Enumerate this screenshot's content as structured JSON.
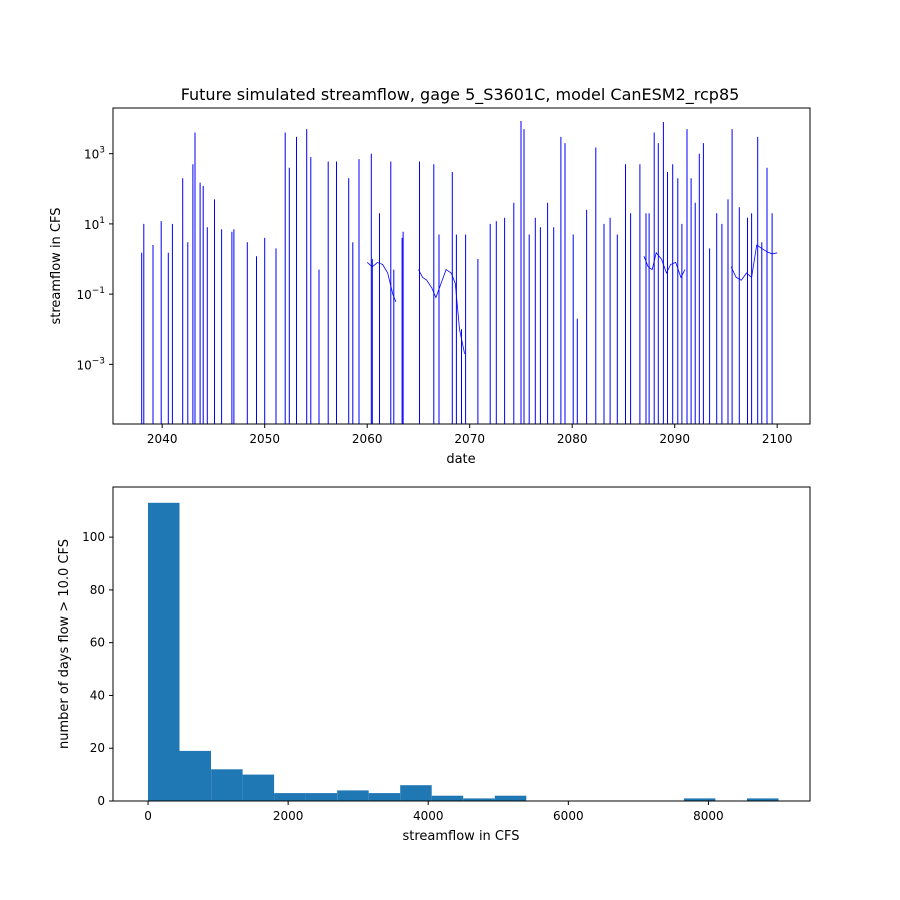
{
  "chart_data": [
    {
      "type": "line",
      "title": "Future simulated streamflow, gage 5_S3601C, model CanESM2_rcp85",
      "xlabel": "date",
      "ylabel": "streamflow in CFS",
      "yscale": "log",
      "xlim": [
        2035.2,
        2103.2
      ],
      "ylim": [
        2e-05,
        20000
      ],
      "x_ticks": [
        2040,
        2050,
        2060,
        2070,
        2080,
        2090,
        2100
      ],
      "x_tick_labels": [
        "2040",
        "2050",
        "2060",
        "2070",
        "2080",
        "2090",
        "2100"
      ],
      "y_ticks": [
        0.001,
        0.1,
        10,
        1000
      ],
      "y_tick_labels": [
        {
          "base": "10",
          "exp": "−3"
        },
        {
          "base": "10",
          "exp": "−1"
        },
        {
          "base": "10",
          "exp": "1"
        },
        {
          "base": "10",
          "exp": "3"
        }
      ],
      "line_color": "#0000ff",
      "spikes": [
        [
          2038.0,
          1.5
        ],
        [
          2038.2,
          10
        ],
        [
          2039.1,
          2.5
        ],
        [
          2039.9,
          12
        ],
        [
          2040.6,
          1.5
        ],
        [
          2041.0,
          10
        ],
        [
          2042.0,
          200
        ],
        [
          2042.5,
          3
        ],
        [
          2043.0,
          500
        ],
        [
          2043.2,
          4000
        ],
        [
          2043.7,
          150
        ],
        [
          2044.0,
          120
        ],
        [
          2044.4,
          8
        ],
        [
          2045.1,
          50
        ],
        [
          2045.8,
          7
        ],
        [
          2046.8,
          6
        ],
        [
          2047.0,
          7
        ],
        [
          2048.3,
          3
        ],
        [
          2049.2,
          1.2
        ],
        [
          2050.0,
          4
        ],
        [
          2051.1,
          2
        ],
        [
          2052.0,
          4000
        ],
        [
          2052.4,
          400
        ],
        [
          2053.1,
          3000
        ],
        [
          2054.1,
          5000
        ],
        [
          2054.5,
          800
        ],
        [
          2055.3,
          0.5
        ],
        [
          2056.2,
          600
        ],
        [
          2057.0,
          600
        ],
        [
          2058.2,
          200
        ],
        [
          2058.6,
          3
        ],
        [
          2059.2,
          700
        ],
        [
          2060.4,
          1000
        ],
        [
          2060.5,
          1
        ],
        [
          2061.2,
          20
        ],
        [
          2062.3,
          600
        ],
        [
          2062.6,
          0.5
        ],
        [
          2063.4,
          4
        ],
        [
          2063.5,
          6
        ],
        [
          2065.1,
          600
        ],
        [
          2066.5,
          500
        ],
        [
          2067.0,
          5
        ],
        [
          2068.3,
          300
        ],
        [
          2068.7,
          5
        ],
        [
          2069.2,
          0.01
        ],
        [
          2069.6,
          5
        ],
        [
          2070.8,
          1
        ],
        [
          2072.0,
          10
        ],
        [
          2072.6,
          12
        ],
        [
          2073.4,
          15
        ],
        [
          2074.3,
          40
        ],
        [
          2075.0,
          8500
        ],
        [
          2075.3,
          5000
        ],
        [
          2075.8,
          5
        ],
        [
          2076.4,
          15
        ],
        [
          2076.9,
          8
        ],
        [
          2077.6,
          40
        ],
        [
          2078.2,
          8
        ],
        [
          2078.9,
          3000
        ],
        [
          2079.3,
          2000
        ],
        [
          2080.1,
          5
        ],
        [
          2080.5,
          0.02
        ],
        [
          2081.4,
          25
        ],
        [
          2082.3,
          1500
        ],
        [
          2083.1,
          10
        ],
        [
          2083.7,
          15
        ],
        [
          2084.4,
          5
        ],
        [
          2085.2,
          500
        ],
        [
          2085.7,
          20
        ],
        [
          2086.6,
          500
        ],
        [
          2087.2,
          20
        ],
        [
          2087.5,
          20
        ],
        [
          2088.0,
          4000
        ],
        [
          2088.4,
          2000
        ],
        [
          2088.9,
          8000
        ],
        [
          2089.3,
          300
        ],
        [
          2089.8,
          500
        ],
        [
          2090.3,
          200
        ],
        [
          2090.7,
          10
        ],
        [
          2091.2,
          5000
        ],
        [
          2091.6,
          200
        ],
        [
          2092.0,
          40
        ],
        [
          2092.4,
          1000
        ],
        [
          2092.8,
          2000
        ],
        [
          2093.4,
          2
        ],
        [
          2094.1,
          20
        ],
        [
          2094.6,
          10
        ],
        [
          2095.2,
          50
        ],
        [
          2095.6,
          5000
        ],
        [
          2096.3,
          30
        ],
        [
          2097.1,
          15
        ],
        [
          2097.5,
          20
        ],
        [
          2098.1,
          3000
        ],
        [
          2098.5,
          3
        ],
        [
          2099.0,
          400
        ],
        [
          2099.5,
          20
        ]
      ],
      "baseflow_segments": [
        [
          [
            2060.0,
            0.8
          ],
          [
            2060.5,
            0.6
          ],
          [
            2061.0,
            0.8
          ],
          [
            2061.5,
            0.7
          ],
          [
            2062.0,
            0.4
          ],
          [
            2062.5,
            0.1
          ],
          [
            2062.8,
            0.06
          ]
        ],
        [
          [
            2065.0,
            0.5
          ],
          [
            2065.4,
            0.3
          ],
          [
            2065.8,
            0.25
          ],
          [
            2066.3,
            0.15
          ],
          [
            2066.7,
            0.08
          ],
          [
            2067.2,
            0.2
          ],
          [
            2067.7,
            0.5
          ],
          [
            2068.2,
            0.4
          ],
          [
            2068.6,
            0.2
          ],
          [
            2069.0,
            0.01
          ],
          [
            2069.5,
            0.002
          ]
        ],
        [
          [
            2087.0,
            1.2
          ],
          [
            2087.4,
            0.6
          ],
          [
            2087.8,
            0.5
          ],
          [
            2088.2,
            1.5
          ],
          [
            2088.7,
            1.0
          ],
          [
            2089.2,
            0.4
          ],
          [
            2089.6,
            0.7
          ],
          [
            2090.1,
            0.8
          ],
          [
            2090.6,
            0.3
          ],
          [
            2091.0,
            0.5
          ]
        ],
        [
          [
            2095.5,
            0.6
          ],
          [
            2096.0,
            0.3
          ],
          [
            2096.5,
            0.25
          ],
          [
            2097.0,
            0.4
          ],
          [
            2097.5,
            0.3
          ],
          [
            2098.0,
            2.5
          ],
          [
            2098.5,
            2.0
          ],
          [
            2099.0,
            1.6
          ],
          [
            2099.5,
            1.4
          ],
          [
            2100.0,
            1.5
          ]
        ]
      ]
    },
    {
      "type": "bar",
      "xlabel": "streamflow in CFS",
      "ylabel": "number of days flow > 10.0 CFS",
      "xlim": [
        -500,
        9450
      ],
      "ylim": [
        0,
        119
      ],
      "x_ticks": [
        0,
        2000,
        4000,
        6000,
        8000
      ],
      "x_tick_labels": [
        "0",
        "2000",
        "4000",
        "6000",
        "8000"
      ],
      "y_ticks": [
        0,
        20,
        40,
        60,
        80,
        100
      ],
      "y_tick_labels": [
        "0",
        "20",
        "40",
        "60",
        "80",
        "100"
      ],
      "bar_color": "#1f77b4",
      "bin_edges": [
        0,
        450,
        900,
        1350,
        1800,
        2250,
        2700,
        3150,
        3600,
        4050,
        4500,
        4950,
        5400,
        5850,
        6300,
        6750,
        7200,
        7650,
        8100,
        8550,
        9000
      ],
      "counts": [
        113,
        19,
        12,
        10,
        3,
        3,
        4,
        3,
        6,
        2,
        1,
        2,
        0,
        0,
        0,
        0,
        0,
        1,
        0,
        1
      ]
    }
  ]
}
